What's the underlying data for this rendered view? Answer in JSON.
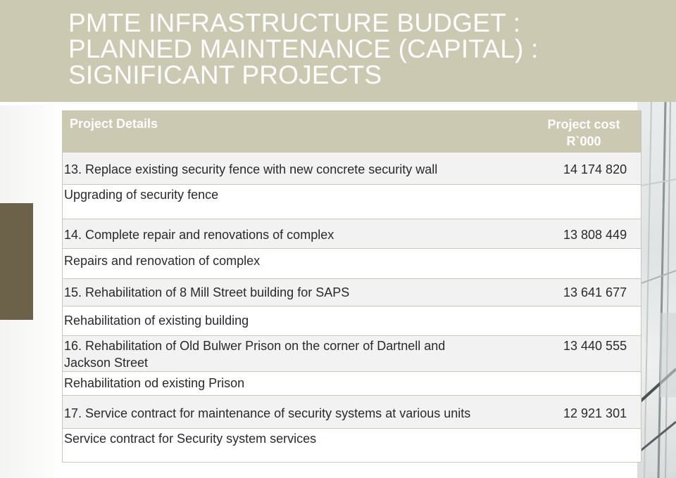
{
  "slide": {
    "title": "PMTE INFRASTRUCTURE BUDGET :\nPLANNED MAINTENANCE (CAPITAL) :\nSIGNIFICANT PROJECTS",
    "colors": {
      "banner": "#cbc9b1",
      "title_text": "#ffffff",
      "accent_block": "#6b6249"
    }
  },
  "table": {
    "headers": {
      "details": "Project Details",
      "cost": "Project cost\nR`000"
    },
    "rows": [
      {
        "type": "project",
        "text": "13. Replace existing security fence with new concrete security wall",
        "cost": "14 174 820"
      },
      {
        "type": "description",
        "text": "Upgrading of security fence",
        "cost": ""
      },
      {
        "type": "project",
        "text": "14. Complete repair and renovations of complex",
        "cost": "13 808 449"
      },
      {
        "type": "description",
        "text": " Repairs and renovation of complex",
        "cost": ""
      },
      {
        "type": "project",
        "text": "15. Rehabilitation of 8 Mill Street building for SAPS",
        "cost": "13 641 677"
      },
      {
        "type": "description",
        "text": "Rehabilitation of existing building",
        "cost": ""
      },
      {
        "type": "project",
        "text": "16. Rehabilitation of Old Bulwer Prison on the corner of Dartnell and\n Jackson Street",
        "cost": "13 440 555"
      },
      {
        "type": "description",
        "text": " Rehabilitation od existing Prison",
        "cost": ""
      },
      {
        "type": "project",
        "text": "17. Service  contract for maintenance of security systems at various units",
        "cost": "12 921 301"
      },
      {
        "type": "description",
        "text": "Service contract for  Security system services",
        "cost": ""
      }
    ]
  }
}
